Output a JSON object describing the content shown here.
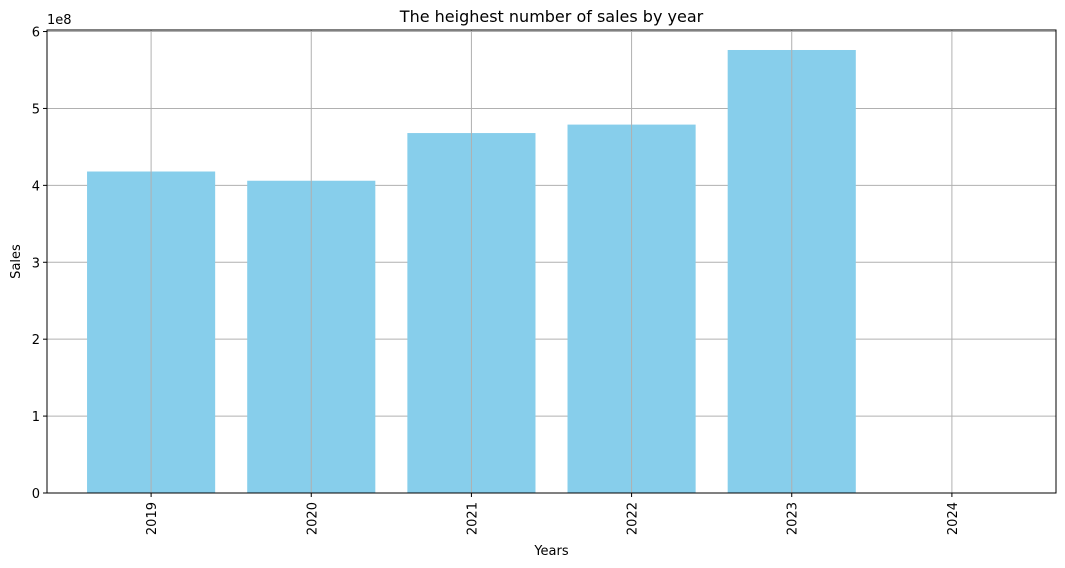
{
  "chart_data": {
    "type": "bar",
    "title": "The heighest number of sales by year",
    "xlabel": "Years",
    "ylabel": "Sales",
    "y_offset_label": "1e8",
    "categories": [
      "2019",
      "2020",
      "2021",
      "2022",
      "2023",
      "2024"
    ],
    "values": [
      418000000,
      406000000,
      468000000,
      479000000,
      576000000,
      0
    ],
    "ylim": [
      0,
      602000000
    ],
    "yticks": [
      0,
      1,
      2,
      3,
      4,
      5,
      6
    ],
    "ytick_scale": 100000000,
    "grid": true,
    "bar_color": "#87CEEB",
    "grid_color": "#b0b0b0",
    "xtick_rotation": "vertical"
  }
}
